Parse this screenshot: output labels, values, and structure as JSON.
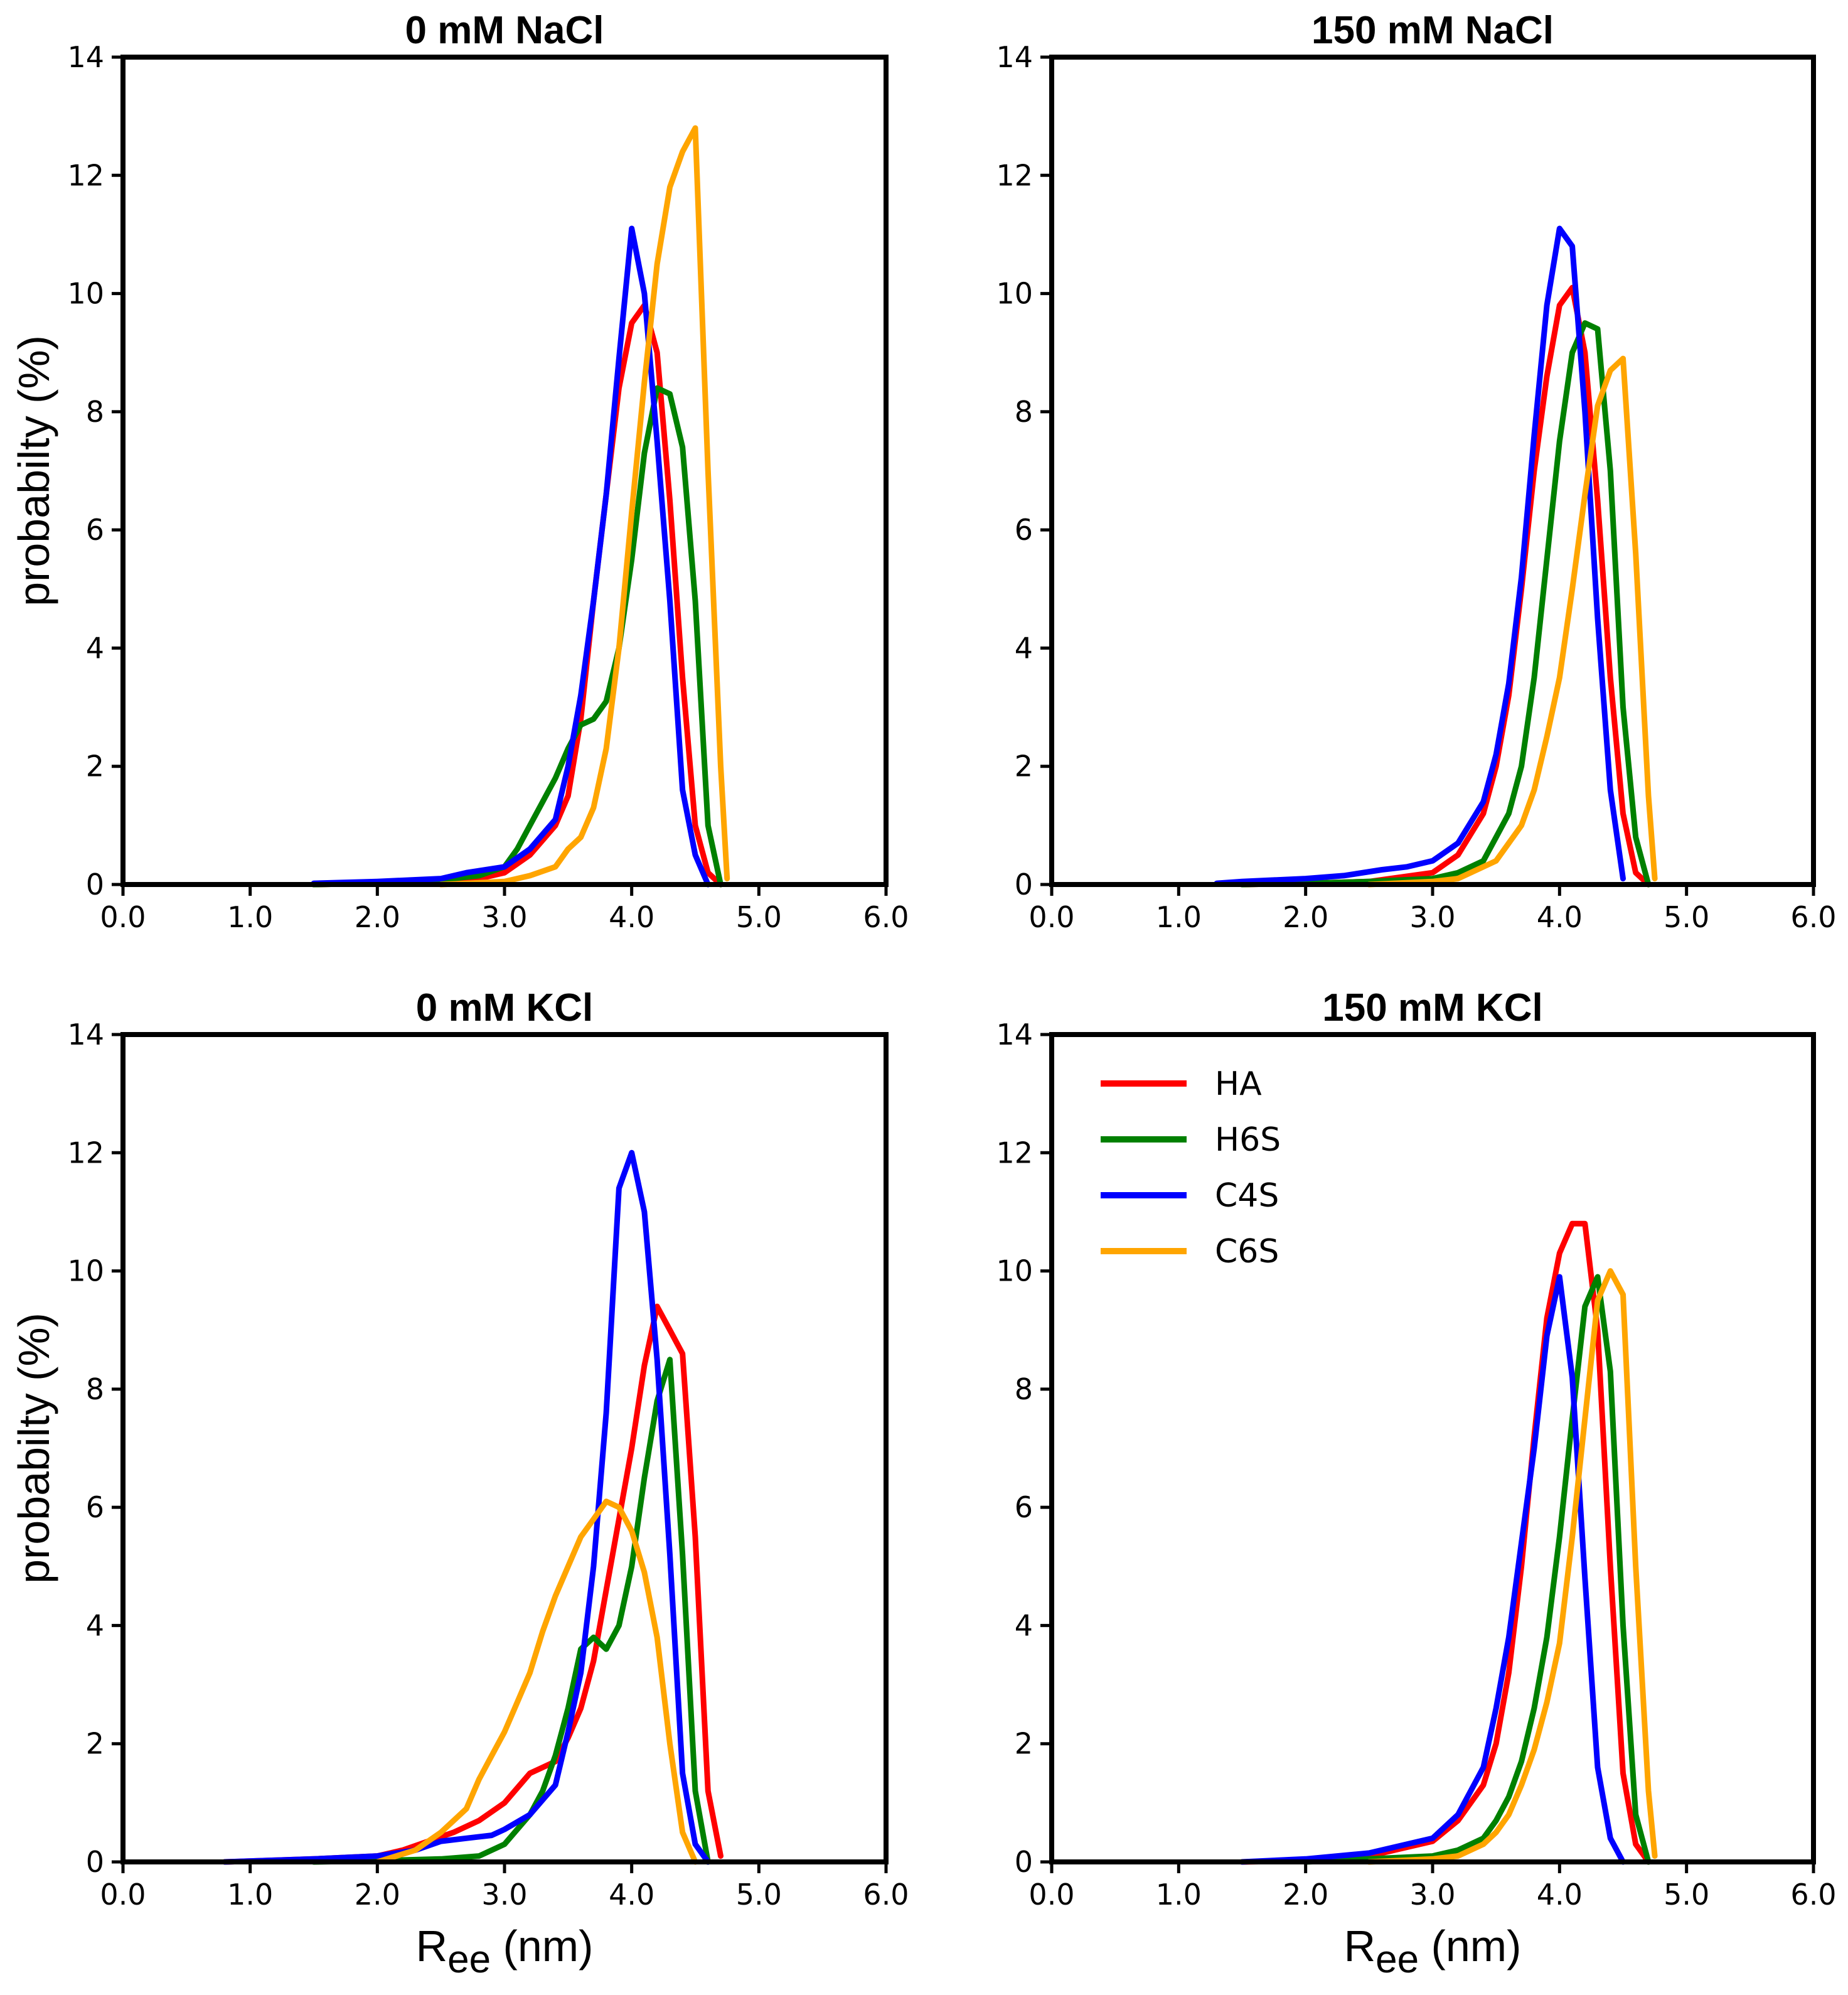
{
  "colors": {
    "HA": "#ff0000",
    "H6S": "#008000",
    "C4S": "#0000ff",
    "C6S": "#ffa500"
  },
  "legend": [
    "HA",
    "H6S",
    "C4S",
    "C6S"
  ],
  "chart_data": [
    {
      "type": "line",
      "title": "0 mM NaCl",
      "ylabel": "probabilty (%)",
      "xlabel": "",
      "xlim": [
        0,
        6
      ],
      "ylim": [
        0,
        14
      ],
      "xticks": [
        "0.0",
        "1.0",
        "2.0",
        "3.0",
        "4.0",
        "5.0",
        "6.0"
      ],
      "yticks": [
        "0",
        "2",
        "4",
        "6",
        "8",
        "10",
        "12",
        "14"
      ],
      "series": [
        {
          "name": "HA",
          "x": [
            1.5,
            2.0,
            2.5,
            2.8,
            3.0,
            3.2,
            3.4,
            3.5,
            3.6,
            3.7,
            3.8,
            3.9,
            4.0,
            4.1,
            4.2,
            4.3,
            4.4,
            4.5,
            4.6,
            4.7
          ],
          "y": [
            0,
            0.02,
            0.05,
            0.1,
            0.2,
            0.5,
            1.0,
            1.5,
            2.8,
            4.8,
            6.6,
            8.4,
            9.5,
            9.8,
            9.0,
            6.5,
            3.5,
            1.0,
            0.2,
            0
          ]
        },
        {
          "name": "H6S",
          "x": [
            1.5,
            2.0,
            2.5,
            2.8,
            3.0,
            3.1,
            3.2,
            3.3,
            3.4,
            3.5,
            3.6,
            3.7,
            3.8,
            3.9,
            4.0,
            4.1,
            4.2,
            4.3,
            4.4,
            4.5,
            4.6,
            4.7
          ],
          "y": [
            0,
            0.02,
            0.08,
            0.15,
            0.3,
            0.6,
            1.0,
            1.4,
            1.8,
            2.3,
            2.7,
            2.8,
            3.1,
            4.0,
            5.5,
            7.3,
            8.4,
            8.3,
            7.4,
            4.8,
            1.0,
            0
          ]
        },
        {
          "name": "C4S",
          "x": [
            1.5,
            2.0,
            2.5,
            2.7,
            3.0,
            3.2,
            3.4,
            3.5,
            3.6,
            3.7,
            3.8,
            3.9,
            4.0,
            4.1,
            4.2,
            4.3,
            4.4,
            4.5,
            4.6
          ],
          "y": [
            0.02,
            0.05,
            0.1,
            0.2,
            0.3,
            0.6,
            1.1,
            2.0,
            3.2,
            4.8,
            6.6,
            8.9,
            11.1,
            10.0,
            7.5,
            4.8,
            1.6,
            0.5,
            0
          ]
        },
        {
          "name": "C6S",
          "x": [
            2.5,
            3.0,
            3.2,
            3.4,
            3.5,
            3.6,
            3.7,
            3.8,
            3.9,
            4.0,
            4.1,
            4.2,
            4.3,
            4.4,
            4.5,
            4.6,
            4.7,
            4.75
          ],
          "y": [
            0,
            0.05,
            0.15,
            0.3,
            0.6,
            0.8,
            1.3,
            2.3,
            4.0,
            6.3,
            8.5,
            10.5,
            11.8,
            12.4,
            12.8,
            7.0,
            2.0,
            0.1
          ]
        }
      ]
    },
    {
      "type": "line",
      "title": "150 mM NaCl",
      "ylabel": "",
      "xlabel": "",
      "xlim": [
        0,
        6
      ],
      "ylim": [
        0,
        14
      ],
      "xticks": [
        "0.0",
        "1.0",
        "2.0",
        "3.0",
        "4.0",
        "5.0",
        "6.0"
      ],
      "yticks": [
        "0",
        "2",
        "4",
        "6",
        "8",
        "10",
        "12",
        "14"
      ],
      "series": [
        {
          "name": "HA",
          "x": [
            1.5,
            2.0,
            2.5,
            3.0,
            3.2,
            3.4,
            3.5,
            3.6,
            3.7,
            3.8,
            3.9,
            4.0,
            4.1,
            4.2,
            4.3,
            4.4,
            4.5,
            4.6,
            4.7
          ],
          "y": [
            0,
            0.02,
            0.05,
            0.2,
            0.5,
            1.2,
            2.0,
            3.2,
            5.0,
            7.0,
            8.6,
            9.8,
            10.1,
            9.0,
            6.5,
            3.5,
            1.2,
            0.2,
            0
          ]
        },
        {
          "name": "H6S",
          "x": [
            1.5,
            2.0,
            2.5,
            3.0,
            3.2,
            3.4,
            3.5,
            3.6,
            3.7,
            3.8,
            3.9,
            4.0,
            4.1,
            4.2,
            4.3,
            4.4,
            4.5,
            4.6,
            4.7
          ],
          "y": [
            0,
            0.02,
            0.05,
            0.1,
            0.2,
            0.4,
            0.8,
            1.2,
            2.0,
            3.5,
            5.5,
            7.5,
            9.0,
            9.5,
            9.4,
            7.0,
            3.0,
            0.8,
            0
          ]
        },
        {
          "name": "C4S",
          "x": [
            1.3,
            1.5,
            2.0,
            2.3,
            2.6,
            2.8,
            3.0,
            3.2,
            3.4,
            3.5,
            3.6,
            3.7,
            3.8,
            3.9,
            4.0,
            4.1,
            4.2,
            4.3,
            4.4,
            4.5
          ],
          "y": [
            0.02,
            0.05,
            0.1,
            0.15,
            0.25,
            0.3,
            0.4,
            0.7,
            1.4,
            2.2,
            3.4,
            5.2,
            7.6,
            9.8,
            11.1,
            10.8,
            8.0,
            4.5,
            1.6,
            0.1
          ]
        },
        {
          "name": "C6S",
          "x": [
            2.5,
            3.0,
            3.2,
            3.4,
            3.5,
            3.6,
            3.7,
            3.8,
            3.9,
            4.0,
            4.1,
            4.2,
            4.3,
            4.4,
            4.5,
            4.6,
            4.7,
            4.75
          ],
          "y": [
            0,
            0.05,
            0.1,
            0.3,
            0.4,
            0.7,
            1.0,
            1.6,
            2.5,
            3.5,
            5.0,
            6.6,
            8.1,
            8.7,
            8.9,
            5.6,
            1.5,
            0.1
          ]
        }
      ]
    },
    {
      "type": "line",
      "title": "0 mM KCl",
      "ylabel": "probabilty (%)",
      "xlabel": "Ree (nm)",
      "xlim": [
        0,
        6
      ],
      "ylim": [
        0,
        14
      ],
      "xticks": [
        "0.0",
        "1.0",
        "2.0",
        "3.0",
        "4.0",
        "5.0",
        "6.0"
      ],
      "yticks": [
        "0",
        "2",
        "4",
        "6",
        "8",
        "10",
        "12",
        "14"
      ],
      "series": [
        {
          "name": "HA",
          "x": [
            0.8,
            1.5,
            2.0,
            2.2,
            2.4,
            2.6,
            2.8,
            3.0,
            3.2,
            3.3,
            3.4,
            3.5,
            3.6,
            3.7,
            3.8,
            3.9,
            4.0,
            4.1,
            4.2,
            4.3,
            4.4,
            4.5,
            4.6,
            4.7
          ],
          "y": [
            0,
            0.05,
            0.1,
            0.2,
            0.35,
            0.5,
            0.7,
            1.0,
            1.5,
            1.6,
            1.7,
            2.1,
            2.6,
            3.4,
            4.6,
            5.8,
            7.0,
            8.4,
            9.4,
            9.0,
            8.6,
            5.5,
            1.2,
            0.1
          ]
        },
        {
          "name": "H6S",
          "x": [
            1.5,
            2.0,
            2.5,
            2.8,
            3.0,
            3.2,
            3.3,
            3.4,
            3.5,
            3.6,
            3.7,
            3.8,
            3.9,
            4.0,
            4.1,
            4.2,
            4.3,
            4.4,
            4.5,
            4.6
          ],
          "y": [
            0,
            0.02,
            0.05,
            0.1,
            0.3,
            0.8,
            1.2,
            1.8,
            2.6,
            3.6,
            3.8,
            3.6,
            4.0,
            5.0,
            6.5,
            7.8,
            8.5,
            5.2,
            1.2,
            0
          ]
        },
        {
          "name": "C4S",
          "x": [
            0.8,
            1.5,
            2.0,
            2.3,
            2.5,
            2.7,
            2.9,
            3.0,
            3.2,
            3.4,
            3.5,
            3.6,
            3.7,
            3.8,
            3.9,
            4.0,
            4.1,
            4.2,
            4.3,
            4.4,
            4.5,
            4.6
          ],
          "y": [
            0,
            0.05,
            0.1,
            0.2,
            0.35,
            0.4,
            0.45,
            0.55,
            0.8,
            1.3,
            2.2,
            3.2,
            5.0,
            7.6,
            11.4,
            12.0,
            11.0,
            8.5,
            5.2,
            1.5,
            0.3,
            0
          ]
        },
        {
          "name": "C6S",
          "x": [
            2.0,
            2.3,
            2.5,
            2.7,
            2.8,
            2.9,
            3.0,
            3.1,
            3.2,
            3.3,
            3.4,
            3.5,
            3.6,
            3.7,
            3.8,
            3.9,
            4.0,
            4.1,
            4.2,
            4.3,
            4.4,
            4.5
          ],
          "y": [
            0,
            0.2,
            0.5,
            0.9,
            1.4,
            1.8,
            2.2,
            2.7,
            3.2,
            3.9,
            4.5,
            5.0,
            5.5,
            5.8,
            6.1,
            6.0,
            5.6,
            4.9,
            3.8,
            2.0,
            0.5,
            0
          ]
        }
      ]
    },
    {
      "type": "line",
      "title": "150 mM KCl",
      "ylabel": "",
      "xlabel": "Ree (nm)",
      "xlim": [
        0,
        6
      ],
      "ylim": [
        0,
        14
      ],
      "xticks": [
        "0.0",
        "1.0",
        "2.0",
        "3.0",
        "4.0",
        "5.0",
        "6.0"
      ],
      "yticks": [
        "0",
        "2",
        "4",
        "6",
        "8",
        "10",
        "12",
        "14"
      ],
      "legend_position": "top-left",
      "series": [
        {
          "name": "HA",
          "x": [
            1.5,
            2.0,
            2.5,
            3.0,
            3.2,
            3.4,
            3.5,
            3.6,
            3.7,
            3.8,
            3.9,
            4.0,
            4.1,
            4.2,
            4.3,
            4.4,
            4.5,
            4.6,
            4.7
          ],
          "y": [
            0,
            0.02,
            0.1,
            0.35,
            0.7,
            1.3,
            2.0,
            3.2,
            5.0,
            7.2,
            9.2,
            10.3,
            10.8,
            10.8,
            9.0,
            5.0,
            1.5,
            0.3,
            0
          ]
        },
        {
          "name": "H6S",
          "x": [
            2.0,
            2.5,
            3.0,
            3.2,
            3.4,
            3.5,
            3.6,
            3.7,
            3.8,
            3.9,
            4.0,
            4.1,
            4.2,
            4.3,
            4.4,
            4.5,
            4.6,
            4.7
          ],
          "y": [
            0,
            0.05,
            0.1,
            0.2,
            0.4,
            0.7,
            1.1,
            1.7,
            2.6,
            3.8,
            5.5,
            7.5,
            9.4,
            9.9,
            8.3,
            4.0,
            0.8,
            0
          ]
        },
        {
          "name": "C4S",
          "x": [
            1.5,
            2.0,
            2.5,
            3.0,
            3.2,
            3.4,
            3.5,
            3.6,
            3.7,
            3.8,
            3.9,
            4.0,
            4.1,
            4.2,
            4.3,
            4.4,
            4.5
          ],
          "y": [
            0,
            0.05,
            0.15,
            0.4,
            0.8,
            1.6,
            2.6,
            3.8,
            5.4,
            7.0,
            8.9,
            9.9,
            8.2,
            4.8,
            1.6,
            0.4,
            0
          ]
        },
        {
          "name": "C6S",
          "x": [
            2.5,
            3.0,
            3.2,
            3.4,
            3.5,
            3.6,
            3.7,
            3.8,
            3.9,
            4.0,
            4.1,
            4.2,
            4.3,
            4.4,
            4.5,
            4.6,
            4.7,
            4.75
          ],
          "y": [
            0,
            0.05,
            0.1,
            0.3,
            0.5,
            0.8,
            1.3,
            1.9,
            2.7,
            3.7,
            5.5,
            7.5,
            9.5,
            10.0,
            9.6,
            5.0,
            1.2,
            0.1
          ]
        }
      ]
    }
  ]
}
